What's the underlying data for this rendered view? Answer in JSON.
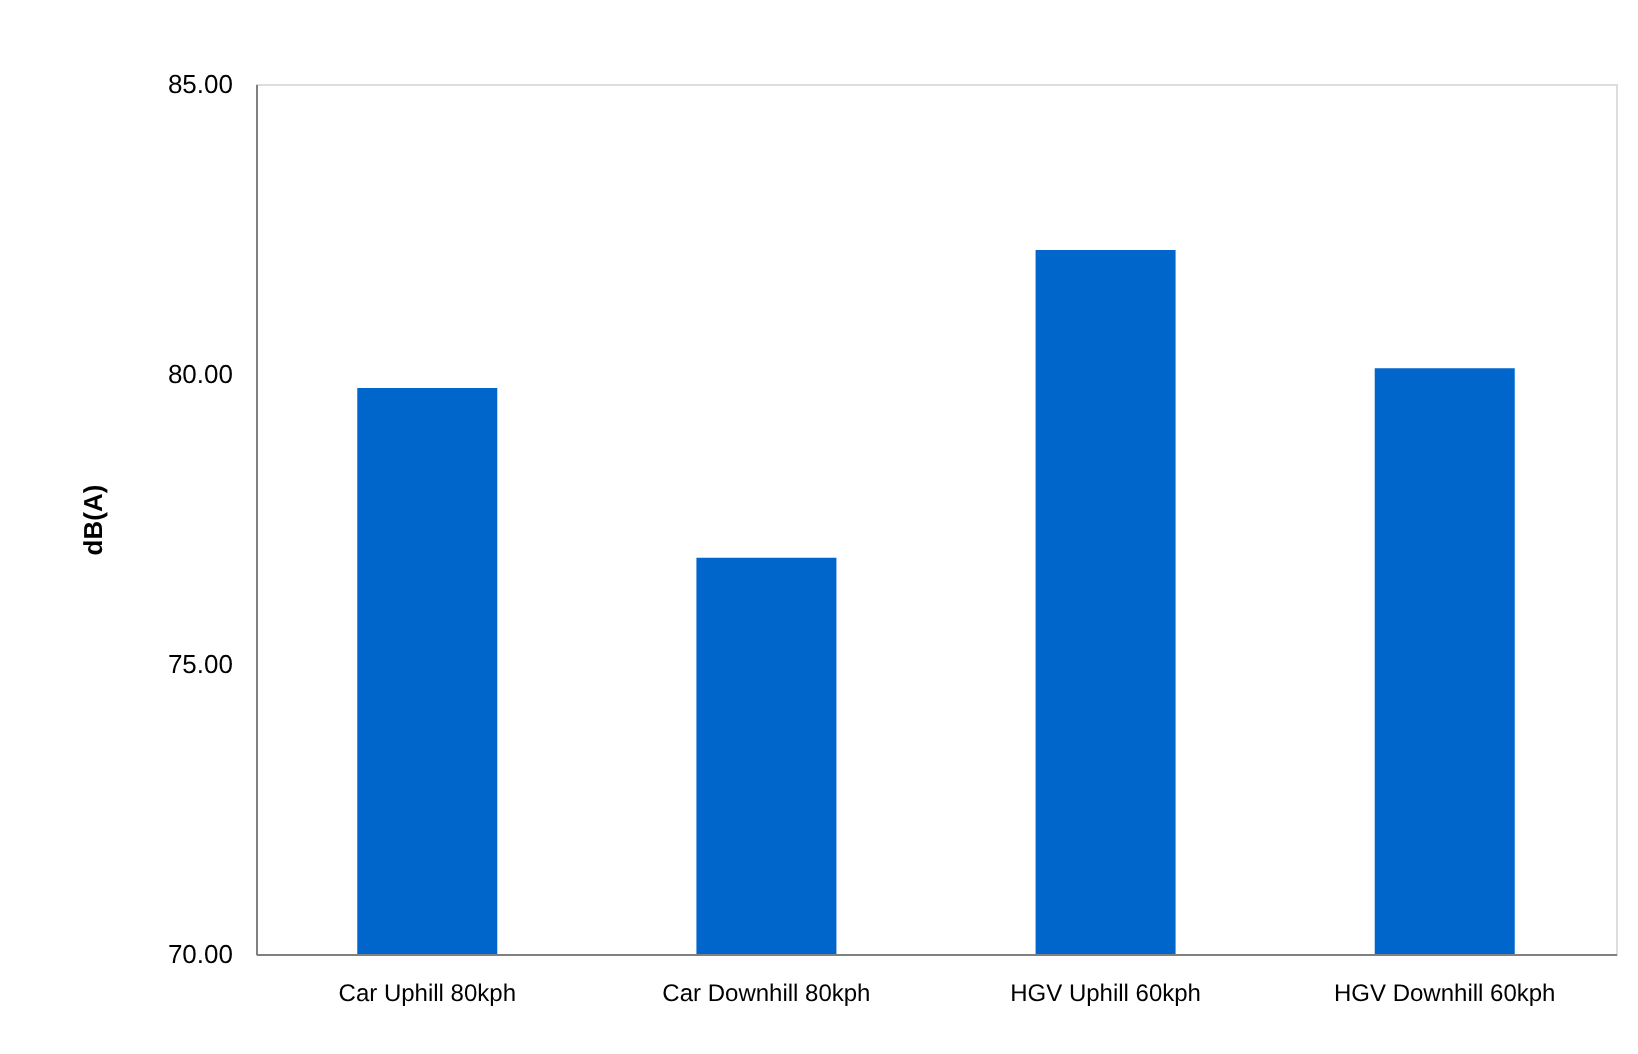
{
  "chart_data": {
    "type": "bar",
    "ylabel": "dB(A)",
    "categories": [
      "Car Uphill 80kph",
      "Car Downhill 80kph",
      "HGV Uphill 60kph",
      "HGV Downhill 60kph"
    ],
    "values": [
      79.76,
      76.83,
      82.14,
      80.1
    ],
    "color": "#0066cc",
    "ylim": [
      70,
      85
    ],
    "yticks": [
      {
        "value": 70,
        "label": "70.00"
      },
      {
        "value": 75,
        "label": "75.00"
      },
      {
        "value": 80,
        "label": "80.00"
      },
      {
        "value": 85,
        "label": "85.00"
      }
    ],
    "grid": false
  }
}
